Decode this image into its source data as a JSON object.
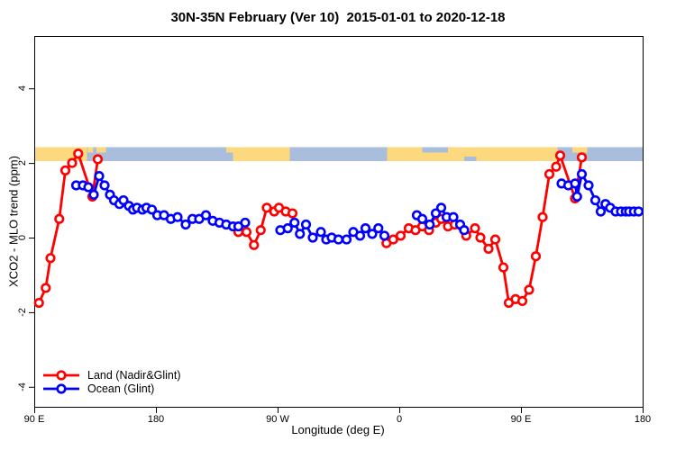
{
  "chart_data": {
    "type": "line",
    "title": "30N-35N February (Ver 10)  2015-01-01 to 2020-12-18",
    "xlabel": "Longitude (deg E)",
    "ylabel": "XCO2 - MLO trend (ppm)",
    "xlim": [
      90,
      540
    ],
    "ylim": [
      -4.55,
      5.4
    ],
    "grid": false,
    "x_ticks": [
      {
        "lon": 90,
        "label": "90 E"
      },
      {
        "lon": 180,
        "label": "180"
      },
      {
        "lon": 270,
        "label": "90 W"
      },
      {
        "lon": 360,
        "label": "0"
      },
      {
        "lon": 450,
        "label": "90 E"
      },
      {
        "lon": 540,
        "label": "180"
      }
    ],
    "y_ticks": [
      {
        "value": 4,
        "label": "4"
      },
      {
        "value": 2,
        "label": "2"
      },
      {
        "value": 0,
        "label": "0"
      },
      {
        "value": -2,
        "label": "-2"
      },
      {
        "value": -4,
        "label": "-4"
      }
    ],
    "legend": {
      "position": "bottom-left",
      "entries": [
        {
          "label": "Land (Nadir&Glint)",
          "color": "#ff0000"
        },
        {
          "label": "Ocean (Glint)",
          "color": "#0000ff"
        }
      ]
    },
    "series": [
      {
        "name": "Land (Nadir&Glint)",
        "color": "#ff0000",
        "segments": [
          [
            [
              93.5,
              -1.75
            ],
            [
              98.5,
              -1.35
            ],
            [
              102,
              -0.55
            ],
            [
              108.5,
              0.5
            ],
            [
              113,
              1.8
            ],
            [
              118,
              2.0
            ],
            [
              122.5,
              2.25
            ],
            [
              133,
              1.1
            ],
            [
              137,
              2.1
            ]
          ],
          [
            [
              241,
              0.15
            ],
            [
              247,
              0.15
            ],
            [
              252.5,
              -0.2
            ],
            [
              257.5,
              0.2
            ],
            [
              262,
              0.8
            ],
            [
              267.5,
              0.7
            ],
            [
              271,
              0.8
            ],
            [
              276,
              0.7
            ],
            [
              281,
              0.65
            ]
          ],
          [
            [
              350.5,
              -0.15
            ],
            [
              355.5,
              -0.05
            ],
            [
              361,
              0.05
            ],
            [
              367,
              0.25
            ],
            [
              372,
              0.2
            ],
            [
              377,
              0.3
            ],
            [
              382,
              0.2
            ],
            [
              387,
              0.4
            ],
            [
              391,
              0.5
            ],
            [
              396,
              0.3
            ],
            [
              401,
              0.35
            ],
            [
              409.5,
              0.05
            ],
            [
              416,
              0.25
            ],
            [
              420,
              0.0
            ],
            [
              426,
              -0.3
            ],
            [
              431,
              -0.05
            ],
            [
              437,
              -0.8
            ],
            [
              441,
              -1.75
            ],
            [
              446,
              -1.65
            ],
            [
              451,
              -1.7
            ],
            [
              456,
              -1.4
            ],
            [
              461,
              -0.5
            ],
            [
              466,
              0.55
            ],
            [
              471,
              1.7
            ],
            [
              476,
              1.9
            ],
            [
              479,
              2.2
            ],
            [
              490,
              1.05
            ],
            [
              495,
              2.15
            ]
          ]
        ]
      },
      {
        "name": "Ocean (Glint)",
        "color": "#0000ff",
        "segments": [
          [
            [
              121,
              1.4
            ],
            [
              126,
              1.4
            ],
            [
              130,
              1.35
            ],
            [
              134,
              1.15
            ],
            [
              138,
              1.65
            ],
            [
              142,
              1.4
            ],
            [
              146,
              1.15
            ],
            [
              149,
              1.0
            ],
            [
              153,
              0.9
            ],
            [
              156,
              1.0
            ],
            [
              160,
              0.85
            ],
            [
              163,
              0.75
            ],
            [
              166,
              0.8
            ],
            [
              170,
              0.75
            ],
            [
              173,
              0.8
            ],
            [
              177,
              0.75
            ],
            [
              181,
              0.6
            ],
            [
              186,
              0.6
            ],
            [
              191,
              0.5
            ],
            [
              196,
              0.55
            ],
            [
              202,
              0.35
            ],
            [
              207,
              0.5
            ],
            [
              212,
              0.5
            ],
            [
              217,
              0.6
            ],
            [
              222,
              0.45
            ],
            [
              227,
              0.4
            ],
            [
              232,
              0.35
            ],
            [
              237,
              0.3
            ],
            [
              241,
              0.3
            ],
            [
              246,
              0.4
            ]
          ],
          [
            [
              272,
              0.2
            ],
            [
              277.5,
              0.25
            ],
            [
              282.5,
              0.4
            ],
            [
              286.5,
              0.1
            ],
            [
              291,
              0.35
            ],
            [
              296,
              0.0
            ],
            [
              302,
              0.15
            ],
            [
              306,
              -0.05
            ],
            [
              310,
              0.0
            ],
            [
              315,
              -0.05
            ],
            [
              321,
              -0.05
            ],
            [
              326,
              0.15
            ],
            [
              331,
              0.05
            ],
            [
              335,
              0.25
            ],
            [
              340,
              0.1
            ],
            [
              344.5,
              0.25
            ],
            [
              349,
              0.05
            ]
          ],
          [
            [
              373,
              0.6
            ],
            [
              377,
              0.5
            ],
            [
              382.5,
              0.35
            ],
            [
              387,
              0.65
            ],
            [
              391,
              0.8
            ],
            [
              395,
              0.55
            ],
            [
              400,
              0.55
            ],
            [
              405,
              0.35
            ],
            [
              408,
              0.2
            ]
          ],
          [
            [
              480,
              1.45
            ],
            [
              485,
              1.4
            ],
            [
              490,
              1.45
            ],
            [
              491.5,
              1.1
            ],
            [
              495,
              1.7
            ],
            [
              500,
              1.4
            ],
            [
              505,
              1.0
            ],
            [
              509,
              0.7
            ],
            [
              512.5,
              0.9
            ],
            [
              516,
              0.8
            ],
            [
              520,
              0.7
            ],
            [
              524,
              0.7
            ],
            [
              527.5,
              0.7
            ],
            [
              530,
              0.7
            ],
            [
              533.5,
              0.7
            ],
            [
              537,
              0.7
            ]
          ]
        ]
      }
    ],
    "map_band": {
      "description": "coastline strip 30N-35N drawn across plot",
      "y_range_ppm": [
        2.05,
        2.42
      ],
      "land_color": "#fcd97e",
      "ocean_color": "#a9bedc",
      "segments": [
        {
          "from": 90,
          "to": 129,
          "type": "land"
        },
        {
          "from": 129,
          "to": 237,
          "type": "ocean"
        },
        {
          "from": 237,
          "to": 279,
          "type": "land"
        },
        {
          "from": 279,
          "to": 351,
          "type": "ocean"
        },
        {
          "from": 351,
          "to": 377,
          "type": "land"
        },
        {
          "from": 377,
          "to": 396,
          "type": "med"
        },
        {
          "from": 396,
          "to": 477,
          "type": "land"
        },
        {
          "from": 477,
          "to": 540,
          "type": "ocean"
        }
      ],
      "overlays": [
        {
          "from": 129.5,
          "to": 133.5,
          "pos": "top",
          "type": "land"
        },
        {
          "from": 136,
          "to": 143,
          "pos": "top",
          "type": "land"
        },
        {
          "from": 232,
          "to": 237,
          "pos": "top",
          "type": "land"
        },
        {
          "from": 408,
          "to": 417,
          "pos": "bottom",
          "type": "ocean"
        },
        {
          "from": 488,
          "to": 499,
          "pos": "top",
          "type": "land"
        }
      ]
    }
  }
}
